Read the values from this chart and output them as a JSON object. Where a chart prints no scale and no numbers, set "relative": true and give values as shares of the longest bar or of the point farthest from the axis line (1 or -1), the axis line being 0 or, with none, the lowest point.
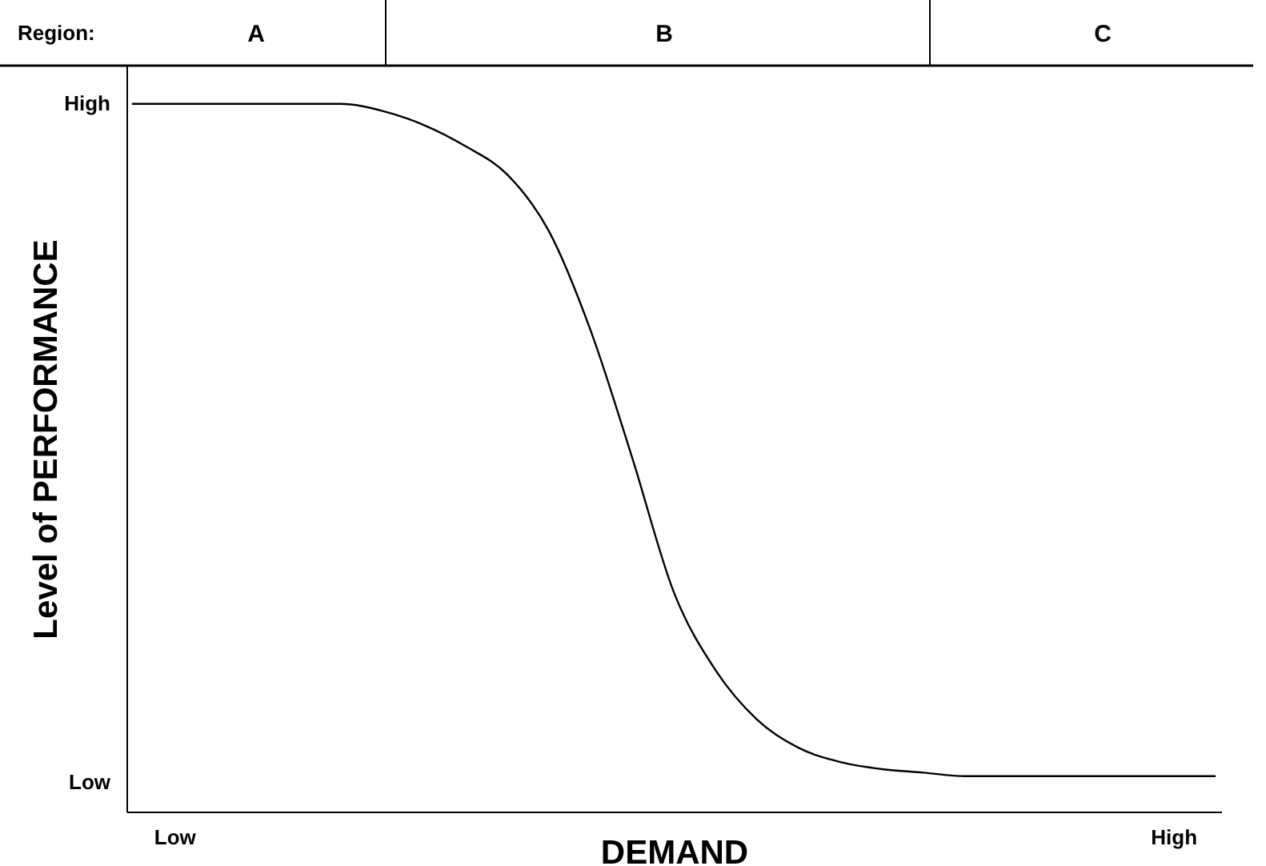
{
  "chart_data": {
    "type": "line",
    "xlabel": "DEMAND",
    "ylabel": "Level of PERFORMANCE",
    "relative": true,
    "categories": [
      null,
      "Low",
      null,
      null,
      null,
      null,
      null,
      null,
      null,
      null,
      null,
      null,
      null,
      null,
      null,
      null,
      null,
      null,
      null,
      null,
      null,
      null,
      null,
      null,
      null,
      "High",
      null
    ],
    "series": [
      {
        "color": "#000000",
        "values": [
          1.0,
          1.0,
          1.0,
          1.0,
          1.0,
          1.0,
          0.99,
          0.97,
          0.94,
          0.9,
          0.82,
          0.68,
          0.5,
          0.31,
          0.2,
          0.13,
          0.09,
          0.07,
          0.06,
          0.055,
          0.05,
          0.05,
          0.05,
          0.05,
          0.05,
          0.05,
          0.05
        ]
      }
    ],
    "annotations": [
      "Region:",
      "A",
      "B",
      "C",
      "High",
      "Low"
    ],
    "grid": false,
    "marker": "none",
    "line_style": "solid"
  }
}
